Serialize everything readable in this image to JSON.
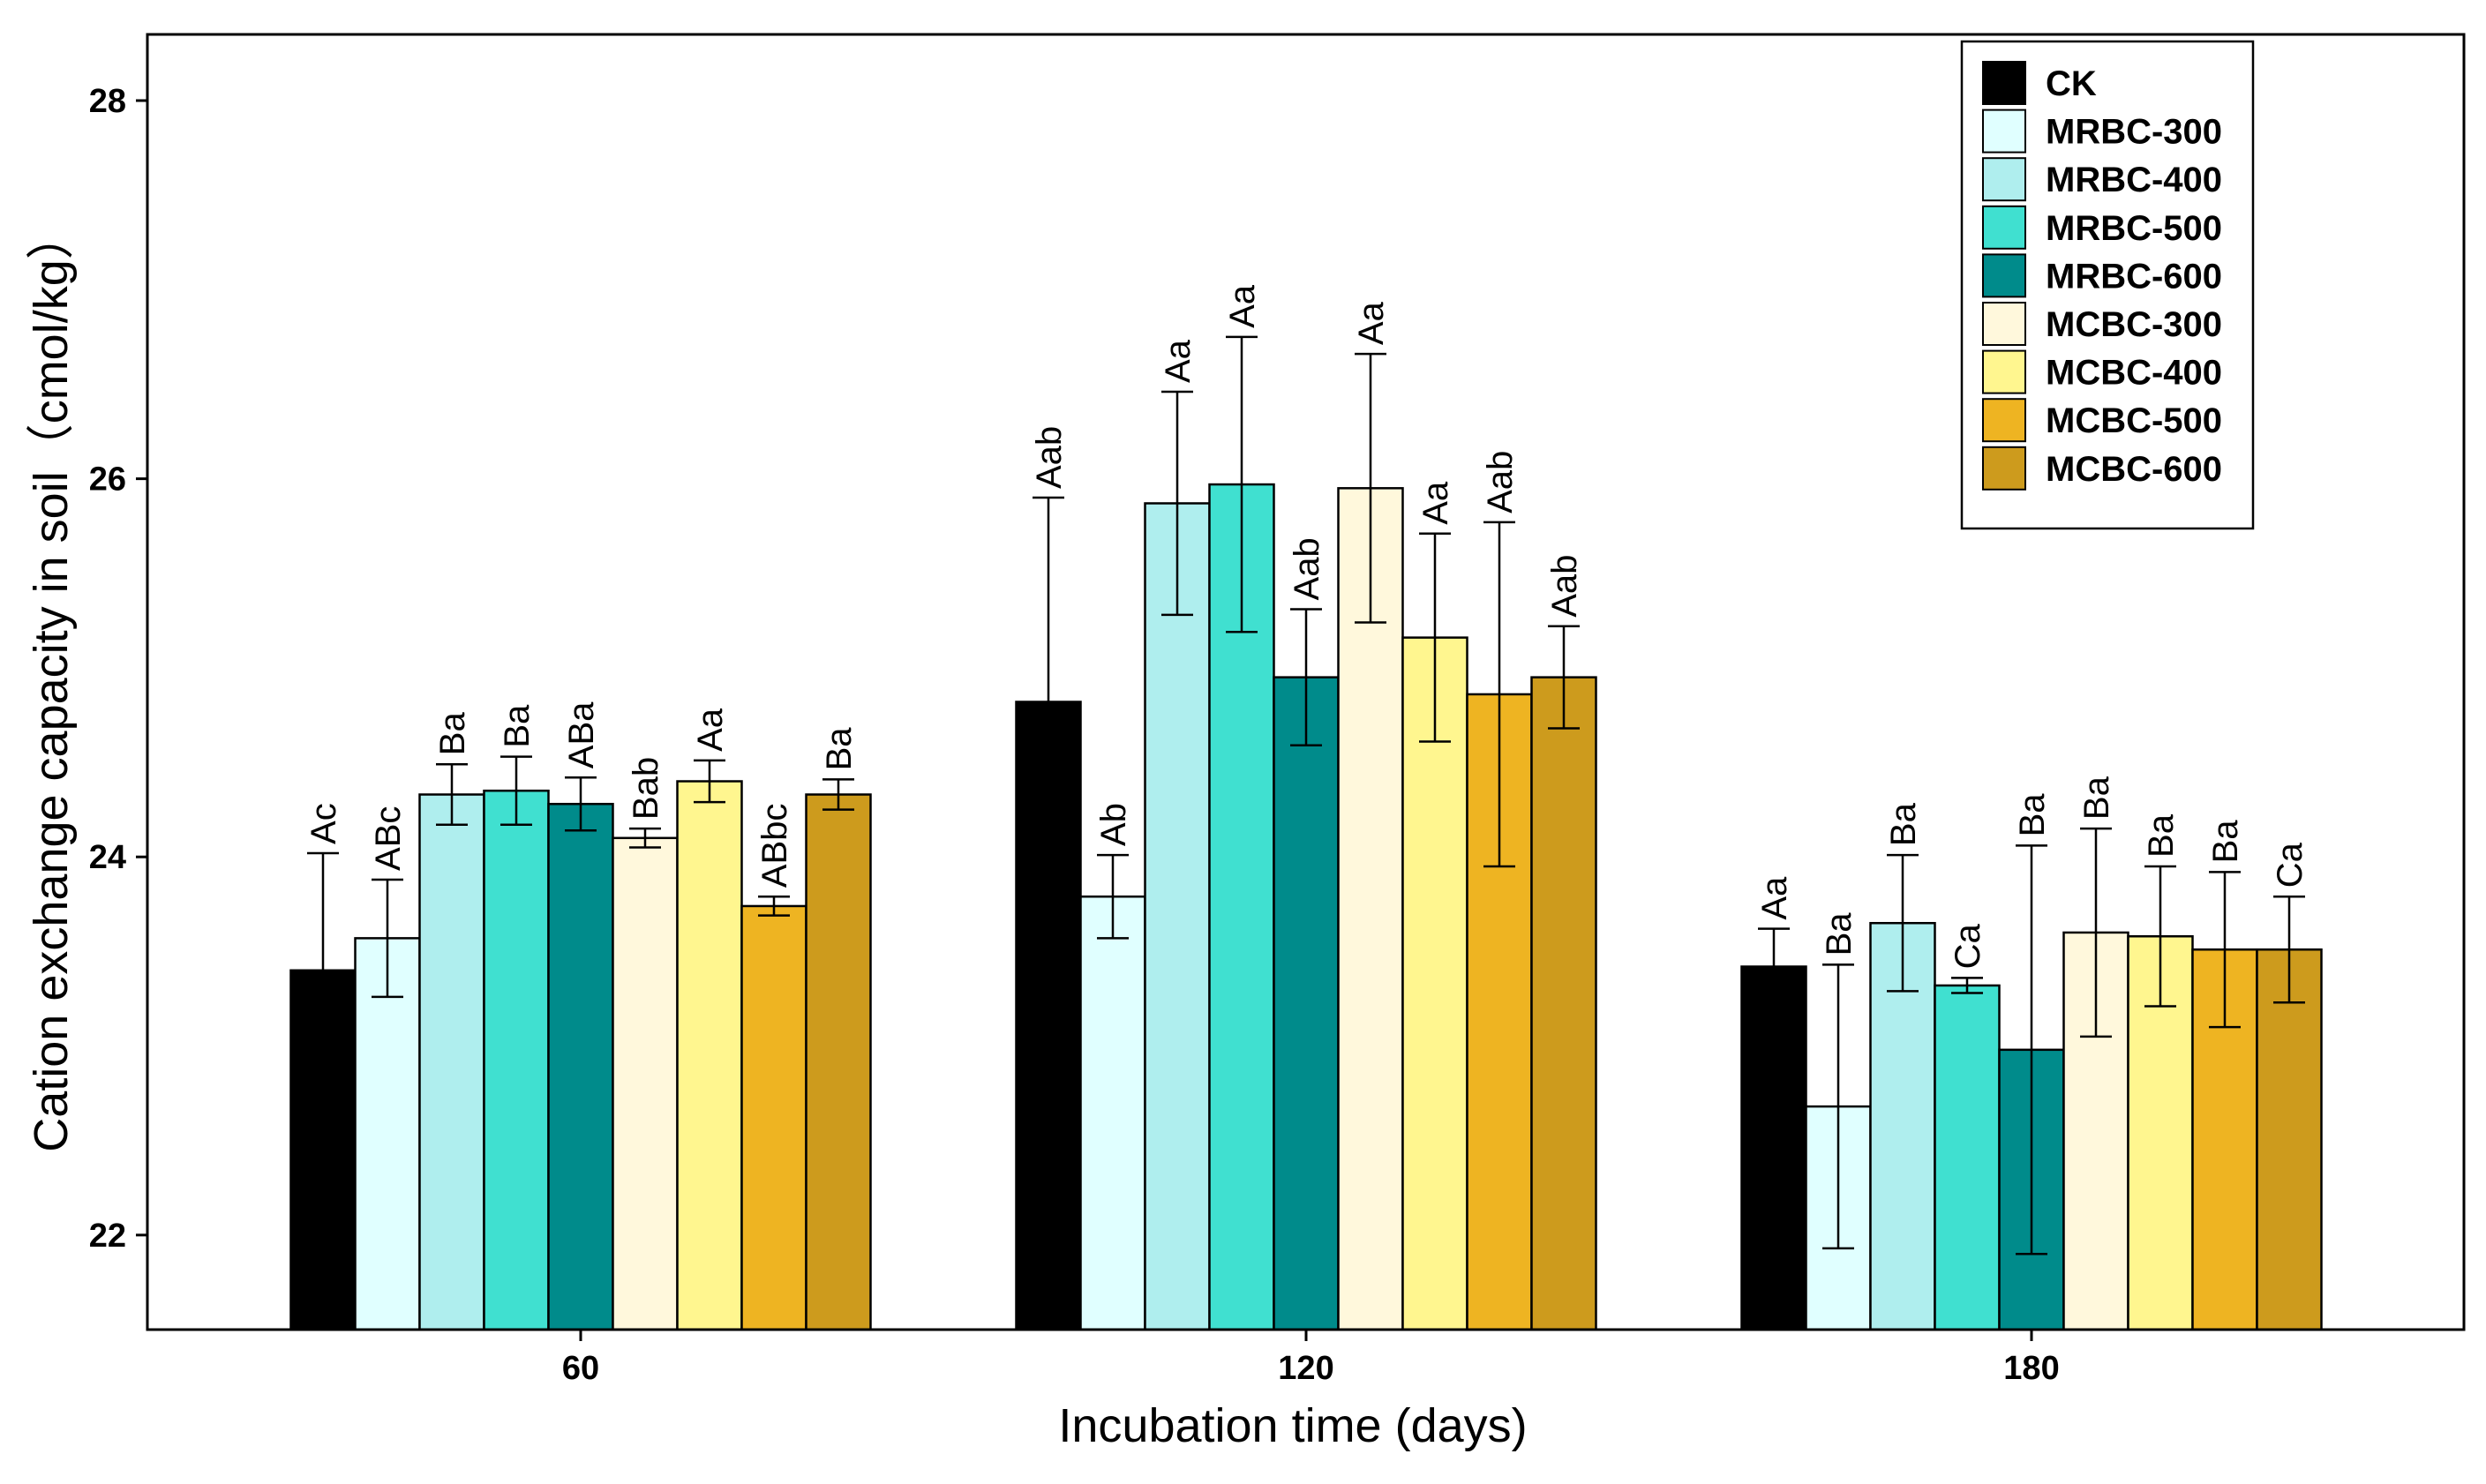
{
  "chart_data": {
    "type": "bar",
    "title": "",
    "xlabel": "Incubation time (days)",
    "ylabel": "Cation exchange capacity in soil（cmol/kg）",
    "ylim": [
      21.5,
      28.35
    ],
    "yticks": [
      22,
      24,
      26,
      28
    ],
    "categories": [
      "60",
      "120",
      "180"
    ],
    "legend_position": "top-right",
    "series": [
      {
        "name": "CK",
        "color": "#000000",
        "values": [
          23.4,
          24.82,
          23.42
        ],
        "errors": [
          0.62,
          1.08,
          0.2
        ],
        "labels": [
          "Ac",
          "Aab",
          "Aa"
        ]
      },
      {
        "name": "MRBC-300",
        "color": "#E0FFFF",
        "values": [
          23.57,
          23.79,
          22.68
        ],
        "errors": [
          0.31,
          0.22,
          0.75
        ],
        "labels": [
          "ABc",
          "Ab",
          "Ba"
        ]
      },
      {
        "name": "MRBC-400",
        "color": "#AFEEEE",
        "values": [
          24.33,
          25.87,
          23.65
        ],
        "errors": [
          0.16,
          0.59,
          0.36
        ],
        "labels": [
          "Ba",
          "Aa",
          "Ba"
        ]
      },
      {
        "name": "MRBC-500",
        "color": "#40E0D0",
        "values": [
          24.35,
          25.97,
          23.32
        ],
        "errors": [
          0.18,
          0.78,
          0.04
        ],
        "labels": [
          "Ba",
          "Aa",
          "Ca"
        ]
      },
      {
        "name": "MRBC-600",
        "color": "#008B8B",
        "values": [
          24.28,
          24.95,
          22.98
        ],
        "errors": [
          0.14,
          0.36,
          1.08
        ],
        "labels": [
          "ABa",
          "Aab",
          "Ba"
        ]
      },
      {
        "name": "MCBC-300",
        "color": "#FFF8DC",
        "values": [
          24.1,
          25.95,
          23.6
        ],
        "errors": [
          0.05,
          0.71,
          0.55
        ],
        "labels": [
          "Bab",
          "Aa",
          "Ba"
        ]
      },
      {
        "name": "MCBC-400",
        "color": "#FFF68F",
        "values": [
          24.4,
          25.16,
          23.58
        ],
        "errors": [
          0.11,
          0.55,
          0.37
        ],
        "labels": [
          "Aa",
          "Aa",
          "Ba"
        ]
      },
      {
        "name": "MCBC-500",
        "color": "#EEB422",
        "values": [
          23.74,
          24.86,
          23.51
        ],
        "errors": [
          0.05,
          0.91,
          0.41
        ],
        "labels": [
          "ABbc",
          "Aab",
          "Ba"
        ]
      },
      {
        "name": "MCBC-600",
        "color": "#CD9B1D",
        "values": [
          24.33,
          24.95,
          23.51
        ],
        "errors": [
          0.08,
          0.27,
          0.28
        ],
        "labels": [
          "Ba",
          "Aab",
          "Ca"
        ]
      }
    ]
  }
}
